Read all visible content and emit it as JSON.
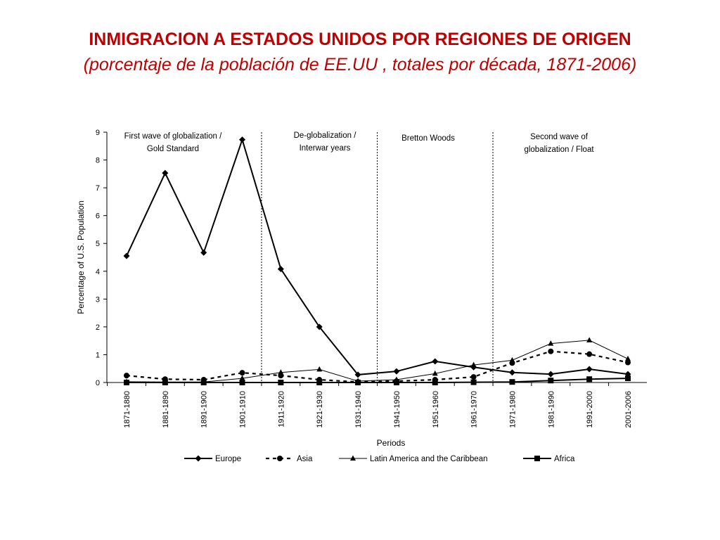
{
  "slide": {
    "title": "INMIGRACION A ESTADOS UNIDOS POR REGIONES DE ORIGEN",
    "subtitle": "(porcentaje de la población de EE.UU , totales por década, 1871-2006)"
  },
  "chart_data": {
    "type": "line",
    "xlabel": "Periods",
    "ylabel": "Percentage of U.S. Population",
    "ylim": [
      0,
      9
    ],
    "yticks": [
      0,
      1,
      2,
      3,
      4,
      5,
      6,
      7,
      8,
      9
    ],
    "grid": false,
    "legend": "bottom",
    "categories": [
      "1871-1880",
      "1881-1890",
      "1891-1900",
      "1901-1910",
      "1911-1920",
      "1921-1930",
      "1931-1940",
      "1941-1950",
      "1951-1960",
      "1961-1970",
      "1971-1980",
      "1981-1990",
      "1991-2000",
      "2001-2006"
    ],
    "series": [
      {
        "name": "Europe",
        "marker": "diamond",
        "dash": "solid",
        "values": [
          4.55,
          7.53,
          4.67,
          8.73,
          4.08,
          2.0,
          0.28,
          0.4,
          0.76,
          0.55,
          0.36,
          0.3,
          0.48,
          0.3
        ]
      },
      {
        "name": "Asia",
        "marker": "circle",
        "dash": "dashed",
        "values": [
          0.25,
          0.12,
          0.1,
          0.35,
          0.25,
          0.1,
          0.02,
          0.05,
          0.1,
          0.2,
          0.7,
          1.12,
          1.02,
          0.72
        ]
      },
      {
        "name": "Latin America and the Caribbean",
        "marker": "triangle",
        "dash": "thin",
        "values": [
          0.03,
          0.02,
          0.02,
          0.15,
          0.36,
          0.47,
          0.05,
          0.1,
          0.32,
          0.63,
          0.8,
          1.4,
          1.52,
          0.85
        ]
      },
      {
        "name": "Africa",
        "marker": "square",
        "dash": "solid",
        "values": [
          0.0,
          0.0,
          0.0,
          0.0,
          0.0,
          0.0,
          0.0,
          0.0,
          0.0,
          0.01,
          0.02,
          0.07,
          0.12,
          0.15
        ]
      }
    ],
    "dividers": [
      {
        "after": "1901-1910",
        "label": [
          "First wave of globalization /",
          "Gold Standard"
        ]
      },
      {
        "after": "1931-1940",
        "label": [
          "De-globalization /",
          "Interwar years"
        ]
      },
      {
        "after": "1961-1970",
        "label": [
          "Bretton Woods"
        ]
      },
      {
        "after": "2001-2006",
        "label": [
          "Second wave of",
          "globalization / Float"
        ]
      }
    ]
  }
}
